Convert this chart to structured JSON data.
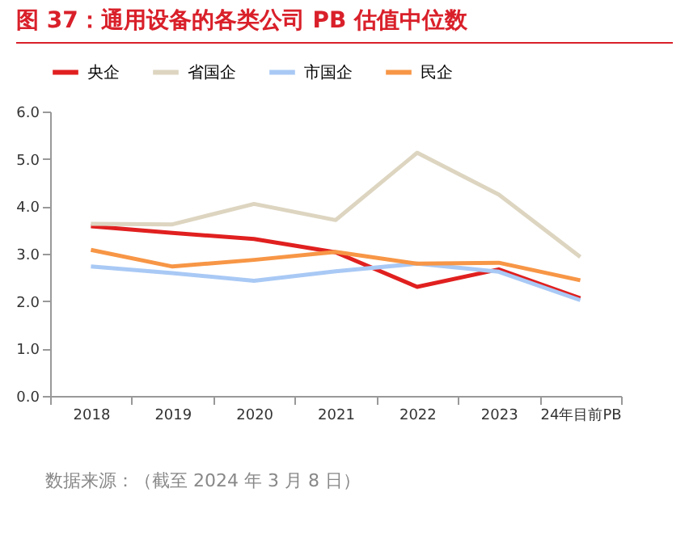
{
  "chart_data": {
    "type": "line",
    "title": "图 37：通用设备的各类公司 PB 估值中位数",
    "categories": [
      "2018",
      "2019",
      "2020",
      "2021",
      "2022",
      "2023",
      "24年目前PB"
    ],
    "series": [
      {
        "name": "央企",
        "color": "#e0201f",
        "values": [
          3.58,
          3.44,
          3.31,
          3.03,
          2.3,
          2.67,
          2.06
        ]
      },
      {
        "name": "省国企",
        "color": "#ddd5c0",
        "values": [
          3.63,
          3.62,
          4.05,
          3.71,
          5.13,
          4.25,
          2.93
        ]
      },
      {
        "name": "市国企",
        "color": "#a9c9f5",
        "values": [
          2.73,
          2.59,
          2.43,
          2.63,
          2.79,
          2.62,
          2.02
        ]
      },
      {
        "name": "民企",
        "color": "#f79646",
        "values": [
          3.08,
          2.73,
          2.87,
          3.04,
          2.79,
          2.81,
          2.44
        ]
      }
    ],
    "ylim": [
      0,
      6
    ],
    "yticks": [
      {
        "value": 0,
        "label": "0.0"
      },
      {
        "value": 1,
        "label": "1.0"
      },
      {
        "value": 2,
        "label": "2.0"
      },
      {
        "value": 3,
        "label": "3.0"
      },
      {
        "value": 4,
        "label": "4.0"
      },
      {
        "value": 5,
        "label": "5.0"
      },
      {
        "value": 6,
        "label": "6.0"
      }
    ],
    "grid": false,
    "legend": "top",
    "marker": "none",
    "line_style": "solid",
    "annotations": [
      "数据来源：（截至 2024 年 3 月 8 日）"
    ]
  }
}
